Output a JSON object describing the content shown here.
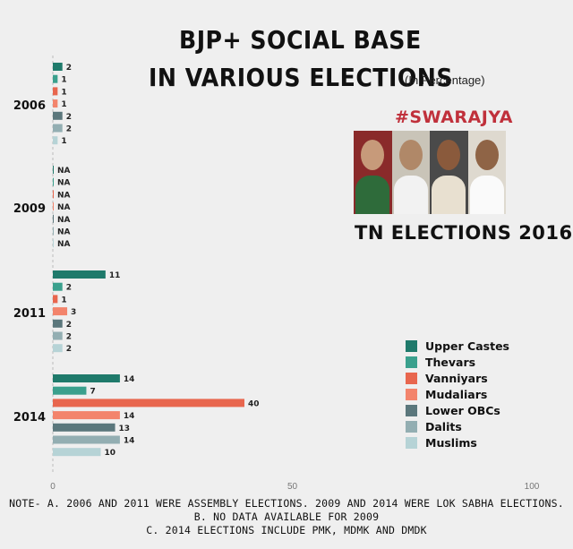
{
  "title_line1": "BJP+ SOCIAL BASE",
  "title_line2": "IN VARIOUS ELECTIONS",
  "subtitle": "(In Percentage)",
  "brand": "#SWARAJYA",
  "image_title": "TN ELECTIONS 2016",
  "notes": [
    "NOTE-  A. 2006 AND 2011 WERE ASSEMBLY ELECTIONS. 2009 AND 2014 WERE LOK SABHA ELECTIONS.",
    "B. NO DATA AVAILABLE FOR 2009",
    "C. 2014 ELECTIONS INCLUDE PMK, MDMK AND DMDK"
  ],
  "chart_data": {
    "type": "bar",
    "orientation": "horizontal",
    "categories": [
      "2006",
      "2009",
      "2011",
      "2014"
    ],
    "xlim": [
      0,
      100
    ],
    "x_ticks": [
      0,
      50,
      100
    ],
    "series": [
      {
        "name": "Upper Castes",
        "color": "#1f7a6b",
        "values": [
          2,
          null,
          11,
          14
        ],
        "labels": [
          "2",
          "NA",
          "11",
          "14"
        ]
      },
      {
        "name": "Thevars",
        "color": "#3aa08d",
        "values": [
          1,
          null,
          2,
          7
        ],
        "labels": [
          "1",
          "NA",
          "2",
          "7"
        ]
      },
      {
        "name": "Vanniyars",
        "color": "#e8664e",
        "values": [
          1,
          null,
          1,
          40
        ],
        "labels": [
          "1",
          "NA",
          "1",
          "40"
        ]
      },
      {
        "name": "Mudaliars",
        "color": "#f3846c",
        "values": [
          1,
          null,
          3,
          14
        ],
        "labels": [
          "1",
          "NA",
          "3",
          "14"
        ]
      },
      {
        "name": "Lower OBCs",
        "color": "#5b777c",
        "values": [
          2,
          null,
          2,
          13
        ],
        "labels": [
          "2",
          "NA",
          "2",
          "13"
        ]
      },
      {
        "name": "Dalits",
        "color": "#93aeb2",
        "values": [
          2,
          null,
          2,
          14
        ],
        "labels": [
          "2",
          "NA",
          "2",
          "14"
        ]
      },
      {
        "name": "Muslims",
        "color": "#b6d3d6",
        "values": [
          1,
          null,
          2,
          10
        ],
        "labels": [
          "1",
          "NA",
          "2",
          "10"
        ]
      }
    ],
    "legend_position": "right"
  }
}
